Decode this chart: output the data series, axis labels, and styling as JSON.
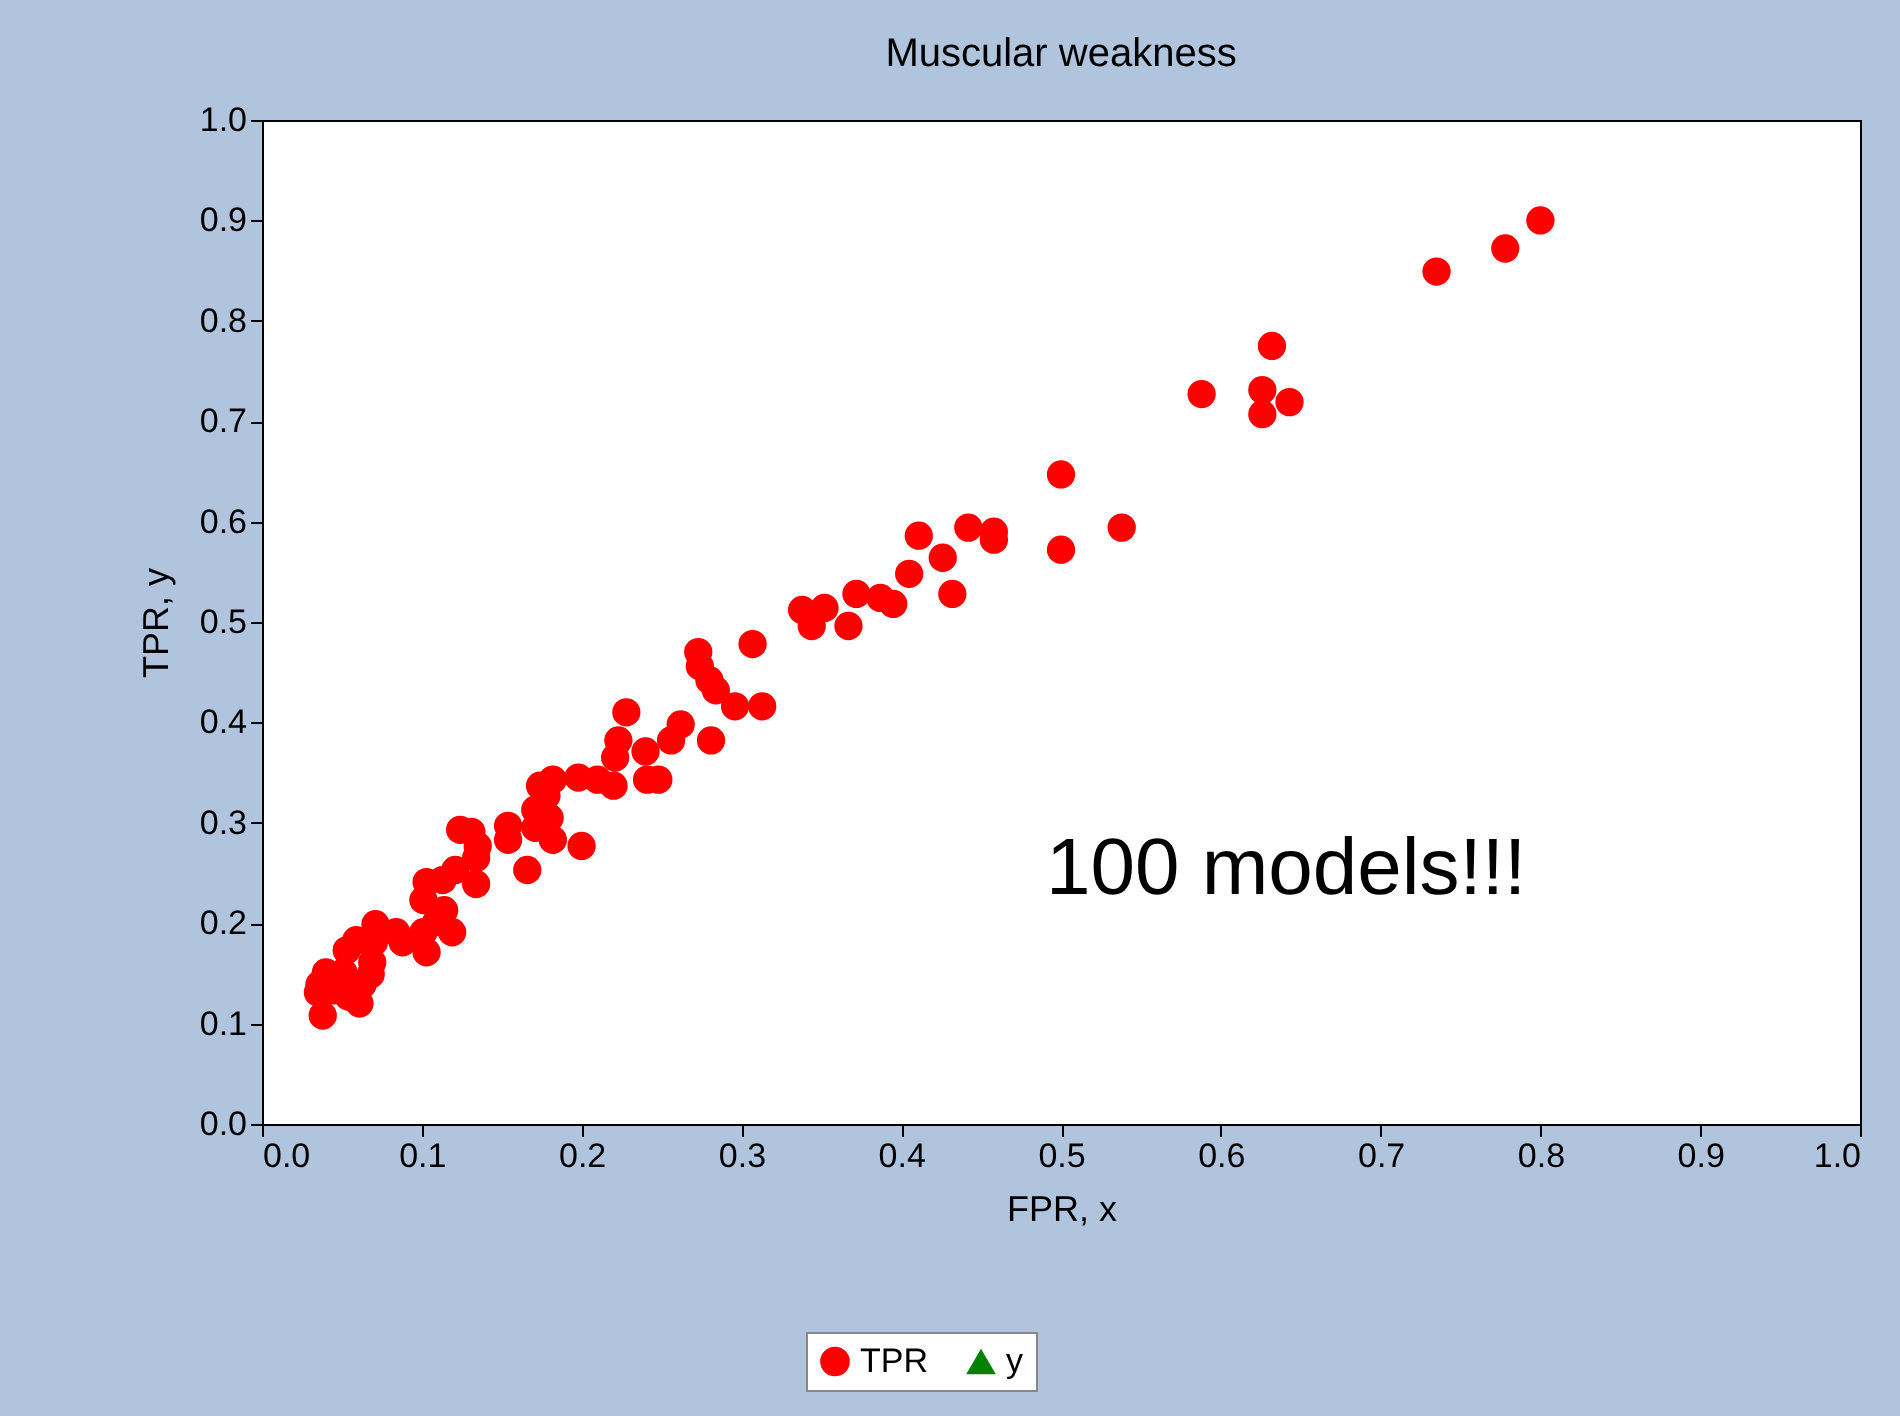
{
  "chart_data": {
    "type": "scatter",
    "title": "Muscular weakness",
    "xlabel": "FPR, x",
    "ylabel": "TPR, y",
    "xlim": [
      0,
      1
    ],
    "ylim": [
      0,
      1
    ],
    "xticks": [
      {
        "value": 0,
        "label": "0.0"
      },
      {
        "value": 0.1,
        "label": "0.1"
      },
      {
        "value": 0.2,
        "label": "0.2"
      },
      {
        "value": 0.3,
        "label": "0.3"
      },
      {
        "value": 0.4,
        "label": "0.4"
      },
      {
        "value": 0.5,
        "label": "0.5"
      },
      {
        "value": 0.6,
        "label": "0.6"
      },
      {
        "value": 0.7,
        "label": "0.7"
      },
      {
        "value": 0.8,
        "label": "0.8"
      },
      {
        "value": 0.9,
        "label": "0.9"
      },
      {
        "value": 1,
        "label": "1.0"
      }
    ],
    "yticks": [
      {
        "value": 0,
        "label": "0.0"
      },
      {
        "value": 0.1,
        "label": "0.1"
      },
      {
        "value": 0.2,
        "label": "0.2"
      },
      {
        "value": 0.3,
        "label": "0.3"
      },
      {
        "value": 0.4,
        "label": "0.4"
      },
      {
        "value": 0.5,
        "label": "0.5"
      },
      {
        "value": 0.6,
        "label": "0.6"
      },
      {
        "value": 0.7,
        "label": "0.7"
      },
      {
        "value": 0.8,
        "label": "0.8"
      },
      {
        "value": 0.9,
        "label": "0.9"
      },
      {
        "value": 1,
        "label": "1.0"
      }
    ],
    "grid": false,
    "legend": "bottom",
    "annotations": [
      "100 models!!!"
    ],
    "series": [
      {
        "name": "TPR",
        "color": "#ff0000",
        "marker": "circle",
        "x": [
          0.8,
          0.778,
          0.735,
          0.632,
          0.626,
          0.626,
          0.643,
          0.588,
          0.5,
          0.5,
          0.538,
          0.442,
          0.458,
          0.458,
          0.411,
          0.426,
          0.405,
          0.432,
          0.387,
          0.395,
          0.372,
          0.352,
          0.338,
          0.344,
          0.367,
          0.307,
          0.273,
          0.274,
          0.28,
          0.284,
          0.296,
          0.313,
          0.281,
          0.228,
          0.262,
          0.256,
          0.223,
          0.221,
          0.24,
          0.248,
          0.241,
          0.22,
          0.21,
          0.198,
          0.182,
          0.174,
          0.178,
          0.171,
          0.18,
          0.171,
          0.154,
          0.154,
          0.182,
          0.2,
          0.166,
          0.135,
          0.124,
          0.131,
          0.134,
          0.134,
          0.121,
          0.113,
          0.103,
          0.101,
          0.114,
          0.109,
          0.101,
          0.119,
          0.103,
          0.084,
          0.07,
          0.088,
          0.071,
          0.059,
          0.053,
          0.04,
          0.069,
          0.051,
          0.068,
          0.036,
          0.035,
          0.044,
          0.054,
          0.063,
          0.061,
          0.038
        ],
        "values": [
          0.9,
          0.872,
          0.849,
          0.775,
          0.731,
          0.707,
          0.719,
          0.727,
          0.647,
          0.572,
          0.594,
          0.594,
          0.59,
          0.582,
          0.586,
          0.564,
          0.548,
          0.528,
          0.524,
          0.518,
          0.528,
          0.514,
          0.512,
          0.496,
          0.496,
          0.478,
          0.47,
          0.456,
          0.442,
          0.432,
          0.416,
          0.416,
          0.382,
          0.41,
          0.398,
          0.382,
          0.382,
          0.365,
          0.371,
          0.343,
          0.343,
          0.337,
          0.343,
          0.345,
          0.343,
          0.337,
          0.327,
          0.313,
          0.305,
          0.295,
          0.297,
          0.283,
          0.283,
          0.277,
          0.253,
          0.277,
          0.293,
          0.291,
          0.265,
          0.239,
          0.253,
          0.243,
          0.241,
          0.223,
          0.213,
          0.201,
          0.191,
          0.191,
          0.171,
          0.191,
          0.181,
          0.181,
          0.199,
          0.183,
          0.173,
          0.151,
          0.161,
          0.151,
          0.149,
          0.139,
          0.131,
          0.133,
          0.127,
          0.139,
          0.12,
          0.108
        ]
      },
      {
        "name": "y",
        "color": "#008000",
        "marker": "triangle"
      }
    ]
  }
}
